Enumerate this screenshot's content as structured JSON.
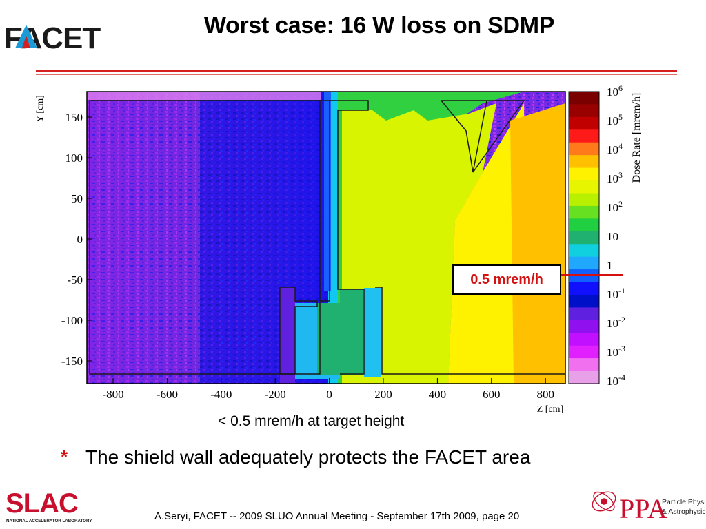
{
  "header": {
    "logo_text": "FACET",
    "title": "Worst case: 16 W loss on SDMP"
  },
  "plot": {
    "ylabel": "Y [cm]",
    "xlabel": "Z [cm]",
    "colorbar_label": "Dose Rate [mrem/h]",
    "x_ticks": [
      "-800",
      "-600",
      "-400",
      "-200",
      "0",
      "200",
      "400",
      "600",
      "800"
    ],
    "y_ticks": [
      "150",
      "100",
      "50",
      "0",
      "-50",
      "-100",
      "-150"
    ],
    "colorbar_ticks": [
      {
        "base": "10",
        "exp": "6"
      },
      {
        "base": "10",
        "exp": "5"
      },
      {
        "base": "10",
        "exp": "4"
      },
      {
        "base": "10",
        "exp": "3"
      },
      {
        "base": "10",
        "exp": "2"
      },
      {
        "base": "10",
        "exp": ""
      },
      {
        "base": "1",
        "exp": ""
      },
      {
        "base": "10",
        "exp": "-1"
      },
      {
        "base": "10",
        "exp": "-2"
      },
      {
        "base": "10",
        "exp": "-3"
      },
      {
        "base": "10",
        "exp": "-4"
      }
    ],
    "colorbar_colors": [
      "#7a0000",
      "#990000",
      "#c00000",
      "#ff1a1a",
      "#ff7a1a",
      "#ffc000",
      "#fff200",
      "#e8f500",
      "#b8f000",
      "#66e020",
      "#20d040",
      "#20b070",
      "#10d0e0",
      "#20a8ff",
      "#1060ff",
      "#1010ff",
      "#0010c8",
      "#6020e0",
      "#9010f0",
      "#c010ff",
      "#e020ff",
      "#f070f0",
      "#e8a0e8"
    ],
    "callout": "0.5 mrem/h"
  },
  "caption": "< 0.5 mrem/h at target height",
  "bullet": {
    "mark": "*",
    "text": "The shield wall adequately protects the FACET area"
  },
  "footer": {
    "slac_text": "SLAC",
    "slac_subtext": "NATIONAL ACCELERATOR LABORATORY",
    "citation": "A.Seryi, FACET  -- 2009 SLUO Annual Meeting - September 17th 2009, page 20",
    "ppa_text": "PPA",
    "ppa_line1": "Particle Physics",
    "ppa_line2": "& Astrophysics"
  }
}
